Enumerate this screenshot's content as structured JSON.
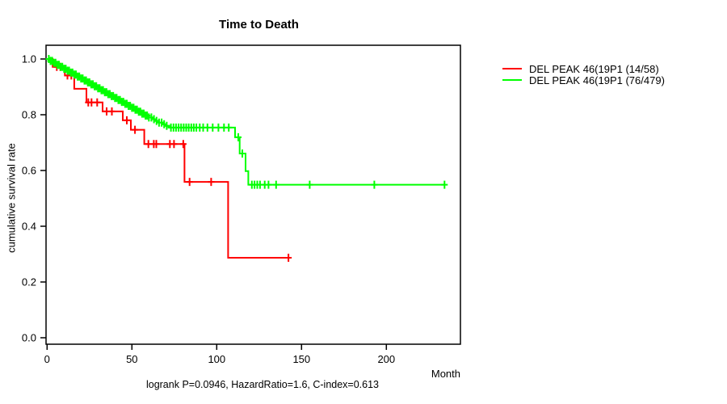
{
  "title": "Time to Death",
  "axes": {
    "x_label": "Month",
    "y_label": "cumulative survival rate",
    "x_tick_labels": [
      "0",
      "50",
      "100",
      "150",
      "200"
    ],
    "x_tick_values": [
      0,
      50,
      100,
      150,
      200
    ],
    "y_tick_labels": [
      "0.0",
      "0.2",
      "0.4",
      "0.6",
      "0.8",
      "1.0"
    ],
    "y_tick_values": [
      0.0,
      0.2,
      0.4,
      0.6,
      0.8,
      1.0
    ]
  },
  "legend": {
    "items": [
      {
        "label": "DEL PEAK 46(19P1 (14/58)",
        "color": "#FF0000"
      },
      {
        "label": "DEL PEAK 46(19P1 (76/479)",
        "color": "#00FF00"
      }
    ]
  },
  "footer": "logrank P=0.0946, HazardRatio=1.6, C-index=0.613",
  "colors": {
    "series_red": "#FF0000",
    "series_green": "#00FF00",
    "axis": "#000000",
    "background": "#FFFFFF"
  },
  "chart_data": {
    "type": "line",
    "subtype": "kaplan-meier-step",
    "title": "Time to Death",
    "xlabel": "Month",
    "ylabel": "cumulative survival rate",
    "xlim": [
      0,
      243
    ],
    "ylim": [
      0,
      1.0
    ],
    "grid": false,
    "legend_position": "outside-top-right",
    "series": [
      {
        "name": "DEL PEAK 46(19P1 (14/58)",
        "color": "#FF0000",
        "steps": [
          [
            0,
            1.0
          ],
          [
            3.3,
            0.972
          ],
          [
            10.5,
            0.941
          ],
          [
            16,
            0.893
          ],
          [
            23.2,
            0.844
          ],
          [
            32.7,
            0.812
          ],
          [
            44.6,
            0.78
          ],
          [
            49.4,
            0.746
          ],
          [
            57.3,
            0.695
          ],
          [
            81,
            0.559
          ],
          [
            106.7,
            0.287
          ]
        ],
        "end_time": 142.3,
        "censor_times": [
          5.7,
          7.8,
          12,
          14.3,
          24.3,
          26.2,
          29.5,
          35.1,
          38.2,
          47,
          51.8,
          59.7,
          62.9,
          64.4,
          72.4,
          74.8,
          80.3,
          84,
          96.7,
          142.3
        ]
      },
      {
        "name": "DEL PEAK 46(19P1 (76/479)",
        "color": "#00FF00",
        "steps": [
          [
            0,
            1.0
          ],
          [
            2,
            0.993
          ],
          [
            4,
            0.986
          ],
          [
            6,
            0.979
          ],
          [
            8,
            0.972
          ],
          [
            10,
            0.965
          ],
          [
            12,
            0.958
          ],
          [
            14,
            0.951
          ],
          [
            16,
            0.944
          ],
          [
            18,
            0.937
          ],
          [
            20,
            0.93
          ],
          [
            22,
            0.923
          ],
          [
            24,
            0.916
          ],
          [
            26,
            0.909
          ],
          [
            28,
            0.902
          ],
          [
            30,
            0.895
          ],
          [
            32,
            0.888
          ],
          [
            34,
            0.881
          ],
          [
            36,
            0.874
          ],
          [
            38,
            0.867
          ],
          [
            40,
            0.86
          ],
          [
            42,
            0.853
          ],
          [
            44,
            0.846
          ],
          [
            46,
            0.839
          ],
          [
            48,
            0.832
          ],
          [
            50,
            0.825
          ],
          [
            52,
            0.818
          ],
          [
            54,
            0.811
          ],
          [
            56,
            0.804
          ],
          [
            58,
            0.797
          ],
          [
            60,
            0.79
          ],
          [
            62,
            0.784
          ],
          [
            64,
            0.778
          ],
          [
            66,
            0.772
          ],
          [
            68,
            0.766
          ],
          [
            70,
            0.76
          ],
          [
            72,
            0.754
          ],
          [
            110.8,
            0.719
          ],
          [
            113.5,
            0.661
          ],
          [
            117,
            0.598
          ],
          [
            118.6,
            0.549
          ]
        ],
        "end_time": 234.3,
        "censor_times": [
          1,
          2,
          3,
          4,
          5,
          6,
          7,
          8,
          9,
          10,
          11,
          12,
          13,
          14,
          15,
          16,
          17,
          18,
          19,
          20,
          21,
          22,
          23,
          24,
          25,
          26,
          27,
          28,
          29,
          30,
          31,
          32,
          33,
          34,
          35,
          36,
          37,
          38,
          39,
          40,
          41,
          42,
          43,
          44,
          45,
          46,
          47,
          48,
          49,
          50,
          51,
          52,
          53,
          54,
          55,
          56,
          57,
          58,
          59,
          60,
          61.5,
          63,
          64.5,
          66,
          67.5,
          69,
          70.5,
          73,
          74.5,
          76,
          77.5,
          79,
          80.5,
          82,
          83.5,
          85,
          86.5,
          88,
          90,
          92,
          94.5,
          97.6,
          101,
          104.3,
          107.1,
          112.7,
          115.1,
          120.7,
          122.3,
          123.9,
          125.5,
          128.3,
          130.5,
          135,
          154.8,
          192.9,
          234.3
        ]
      }
    ]
  }
}
